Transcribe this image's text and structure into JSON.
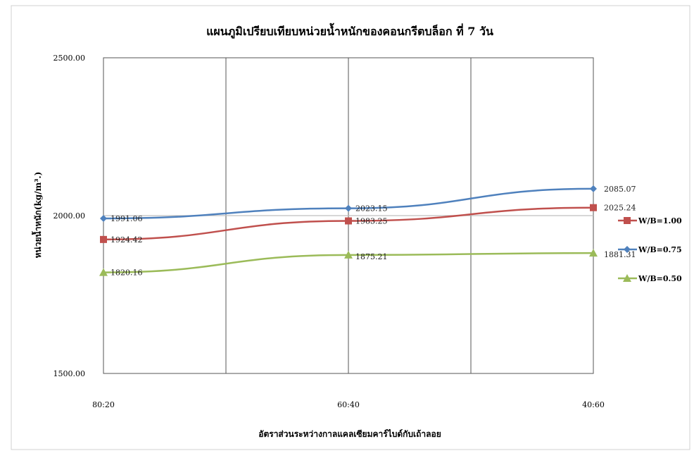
{
  "chart_data": {
    "type": "line",
    "title": "แผนภูมิเปรียบเทียบหน่วยน้ำหนักของคอนกรีตบล็อก ที่ 7 วัน",
    "xlabel": "อัตราส่วนระหว่างกาลแคลเซียมคาร์ไบด์กับเถ้าลอย",
    "ylabel": "หน่วยน้ำหนัก(kg/m³.)",
    "categories": [
      "80:20",
      "60:40",
      "40:60"
    ],
    "ylim": [
      1500,
      2500
    ],
    "yticks": [
      "1500.00",
      "2000.00",
      "2500.00"
    ],
    "grid": "vertical",
    "legend_position": "right",
    "series": [
      {
        "name": "W/B=1.00",
        "values": [
          1924.42,
          1983.25,
          2025.24
        ],
        "labels": [
          "1924.42",
          "1983.25",
          "2025.24"
        ],
        "color": "#c0504d",
        "marker": "square"
      },
      {
        "name": "W/B=0.75",
        "values": [
          1991.06,
          2023.15,
          2085.07
        ],
        "labels": [
          "1991.06",
          "2023.15",
          "2085.07"
        ],
        "color": "#4f81bd",
        "marker": "diamond"
      },
      {
        "name": "W/B=0.50",
        "values": [
          1820.16,
          1875.21,
          1881.31
        ],
        "labels": [
          "1820.16",
          "1875.21",
          "1881.31"
        ],
        "color": "#9bbb59",
        "marker": "triangle"
      }
    ]
  }
}
